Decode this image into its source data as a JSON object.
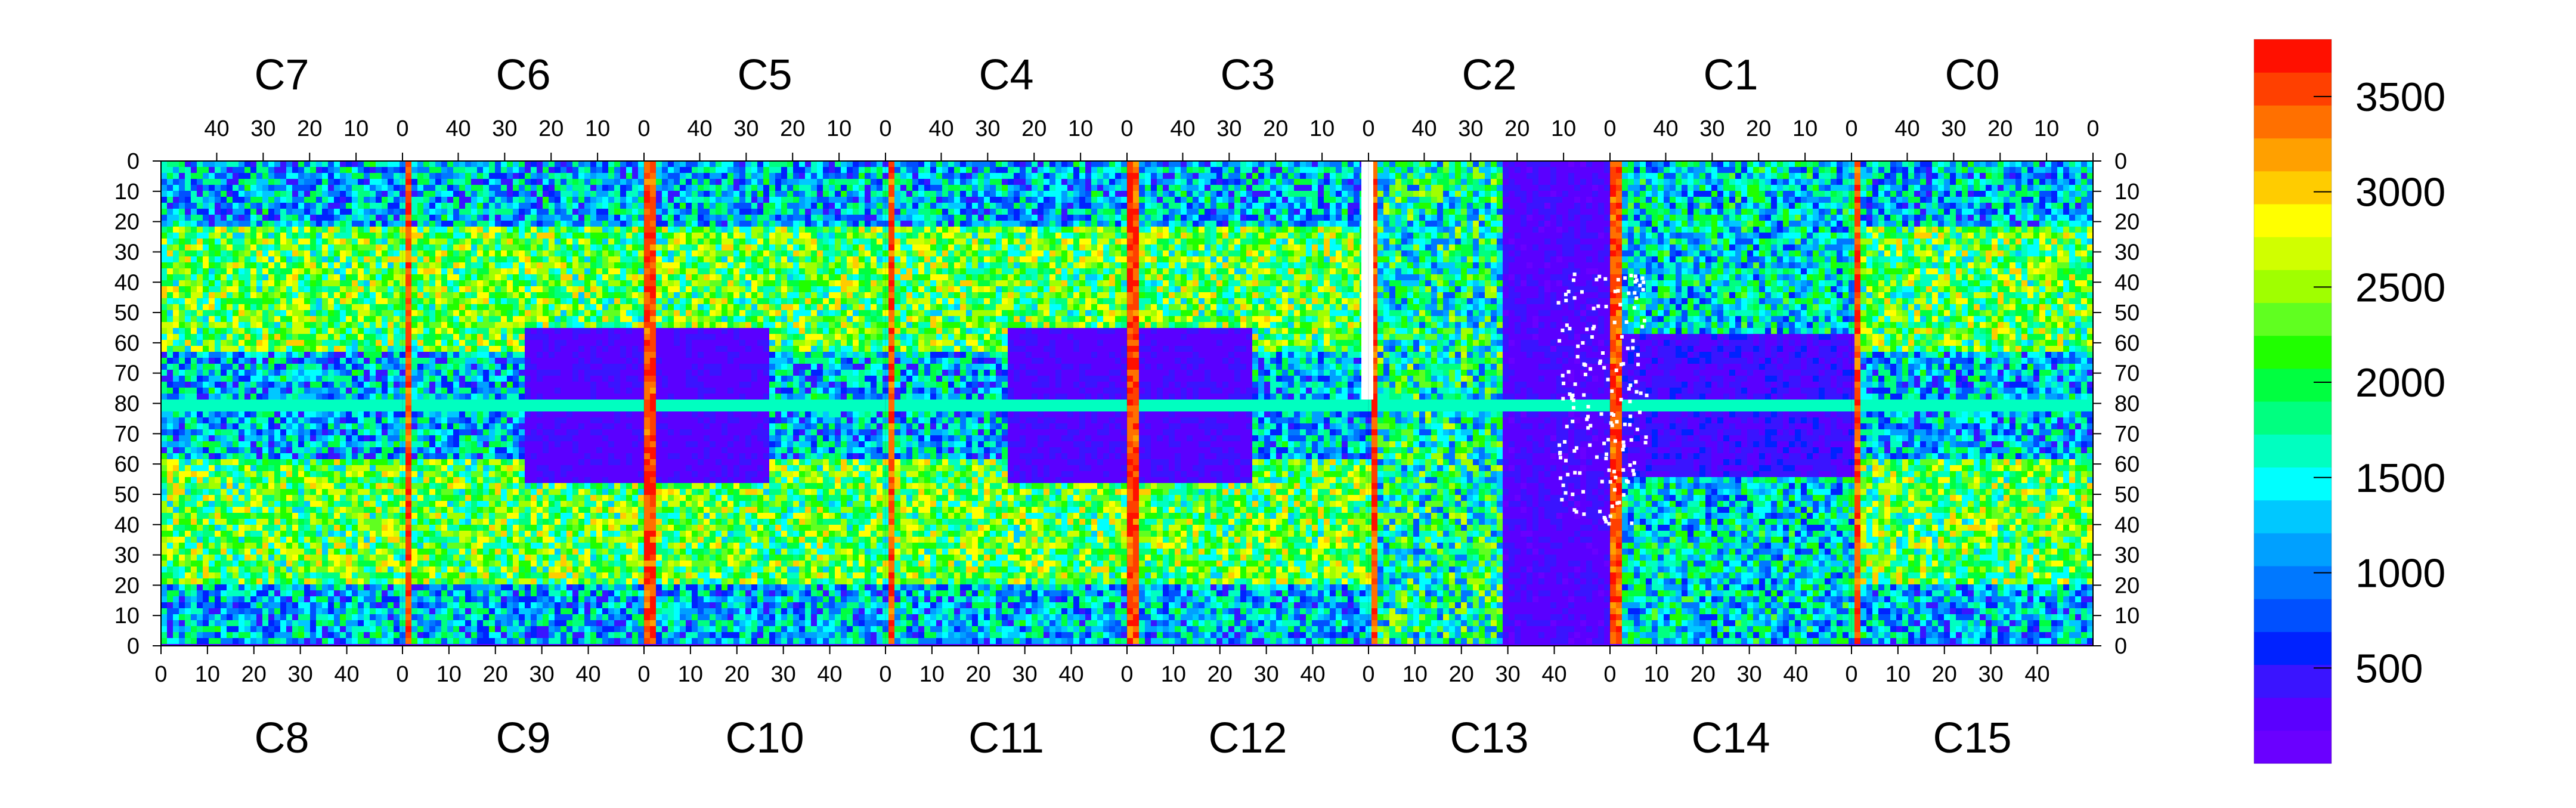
{
  "chart_data": {
    "type": "heatmap",
    "title": "",
    "top_chips": [
      "C7",
      "C6",
      "C5",
      "C4",
      "C3",
      "C2",
      "C1",
      "C0"
    ],
    "bottom_chips": [
      "C8",
      "C9",
      "C10",
      "C11",
      "C12",
      "C13",
      "C14",
      "C15"
    ],
    "top_tick_labels": [
      "40",
      "30",
      "20",
      "10",
      "0"
    ],
    "bottom_tick_labels": [
      "0",
      "10",
      "20",
      "30",
      "40"
    ],
    "left_y_labels": [
      "0",
      "10",
      "20",
      "30",
      "40",
      "50",
      "60",
      "70",
      "80",
      "70",
      "60",
      "50",
      "40",
      "30",
      "20",
      "10",
      "0"
    ],
    "right_y_labels": [
      "0",
      "10",
      "20",
      "30",
      "40",
      "50",
      "60",
      "70",
      "80",
      "70",
      "60",
      "50",
      "40",
      "30",
      "20",
      "10",
      "0"
    ],
    "columns_per_chip": 52,
    "rows_per_half": 80,
    "colorbar": {
      "min": 0,
      "max": 3800,
      "tick_values": [
        500,
        1000,
        1500,
        2000,
        2500,
        3000,
        3500
      ],
      "tick_labels": [
        "500",
        "1000",
        "1500",
        "2000",
        "2500",
        "3000",
        "3500"
      ],
      "palette": [
        "#6a00ff",
        "#5a00ff",
        "#3a14ff",
        "#0022ff",
        "#0050ff",
        "#0078ff",
        "#00a0ff",
        "#00c8ff",
        "#00ffff",
        "#00ffc0",
        "#00ff80",
        "#00ff40",
        "#20ff00",
        "#60ff20",
        "#a0ff00",
        "#d0ff00",
        "#ffff00",
        "#ffcc00",
        "#ffa000",
        "#ff7000",
        "#ff4000",
        "#ff1000"
      ]
    },
    "grid": false,
    "empty_cell_color": "#ffffff"
  }
}
